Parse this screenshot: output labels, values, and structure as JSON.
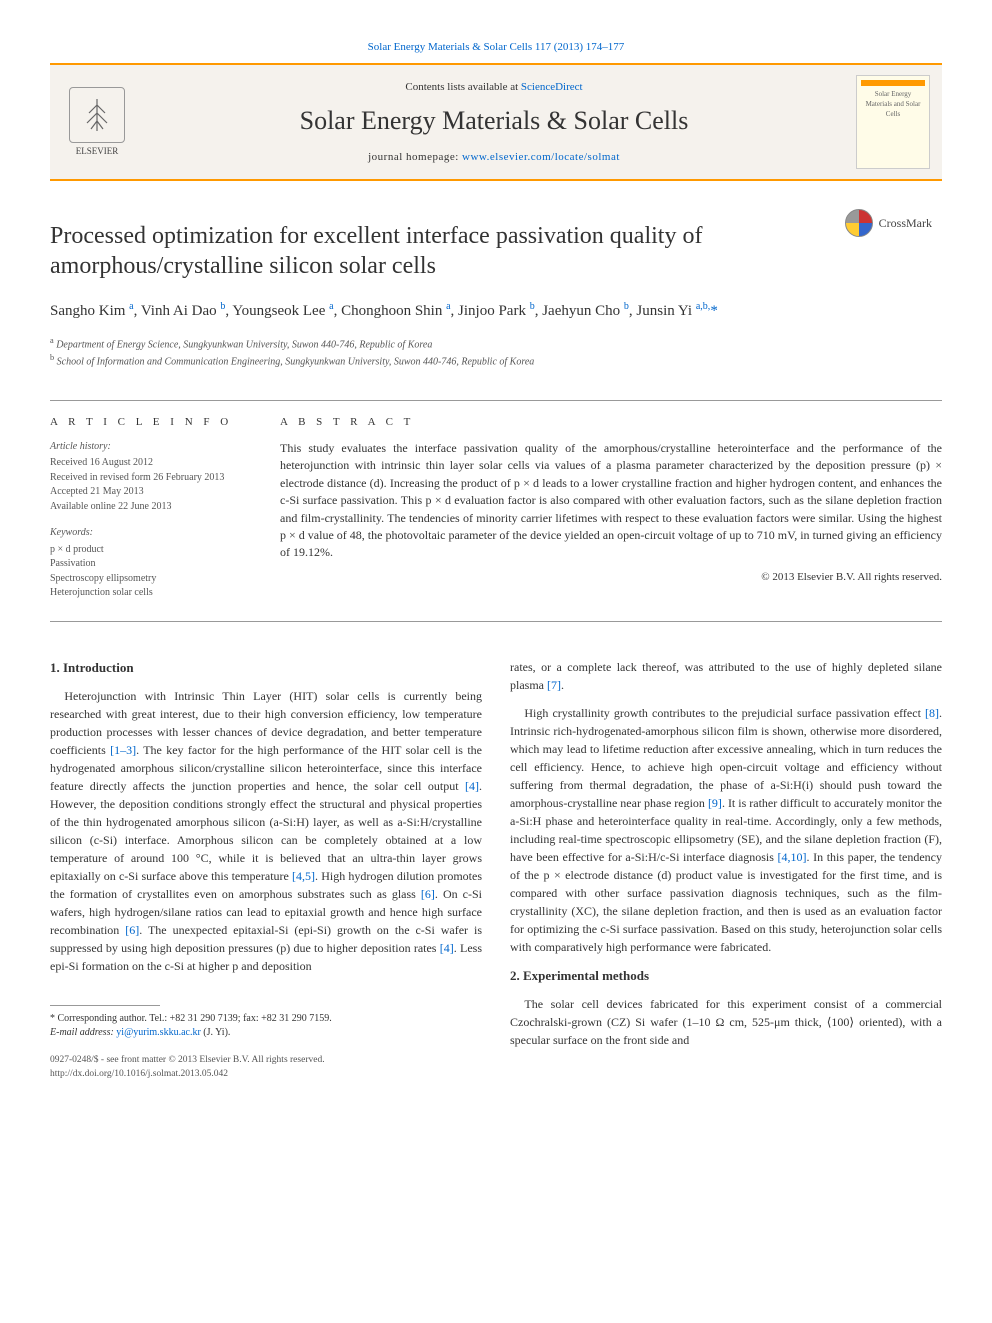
{
  "header": {
    "top_link": "Solar Energy Materials & Solar Cells 117 (2013) 174–177",
    "contents_prefix": "Contents lists available at ",
    "contents_link": "ScienceDirect",
    "journal_name": "Solar Energy Materials & Solar Cells",
    "homepage_prefix": "journal homepage: ",
    "homepage_link": "www.elsevier.com/locate/solmat",
    "publisher": "ELSEVIER",
    "cover_text": "Solar Energy Materials and Solar Cells"
  },
  "crossmark_label": "CrossMark",
  "title": "Processed optimization for excellent interface passivation quality of amorphous/crystalline silicon solar cells",
  "authors_html": "Sangho Kim <sup>a</sup>, Vinh Ai Dao <sup>b</sup>, Youngseok Lee <sup>a</sup>, Chonghoon Shin <sup>a</sup>, Jinjoo Park <sup>b</sup>, Jaehyun Cho <sup>b</sup>, Junsin Yi <sup>a,b,</sup><span class='star'>*</span>",
  "affiliations": {
    "a": "Department of Energy Science, Sungkyunkwan University, Suwon 440-746, Republic of Korea",
    "b": "School of Information and Communication Engineering, Sungkyunkwan University, Suwon 440-746, Republic of Korea"
  },
  "article_info": {
    "heading": "A R T I C L E   I N F O",
    "history_label": "Article history:",
    "received": "Received 16 August 2012",
    "revised": "Received in revised form 26 February 2013",
    "accepted": "Accepted 21 May 2013",
    "online": "Available online 22 June 2013",
    "keywords_label": "Keywords:",
    "keywords": [
      "p × d product",
      "Passivation",
      "Spectroscopy ellipsometry",
      "Heterojunction solar cells"
    ]
  },
  "abstract": {
    "heading": "A B S T R A C T",
    "text": "This study evaluates the interface passivation quality of the amorphous/crystalline heterointerface and the performance of the heterojunction with intrinsic thin layer solar cells via values of a plasma parameter characterized by the deposition pressure (p) × electrode distance (d). Increasing the product of p × d leads to a lower crystalline fraction and higher hydrogen content, and enhances the c-Si surface passivation. This p × d evaluation factor is also compared with other evaluation factors, such as the silane depletion fraction and film-crystallinity. The tendencies of minority carrier lifetimes with respect to these evaluation factors were similar. Using the highest p × d value of 48, the photovoltaic parameter of the device yielded an open-circuit voltage of up to 710 mV, in turned giving an efficiency of 19.12%.",
    "copyright": "© 2013 Elsevier B.V. All rights reserved."
  },
  "sections": {
    "intro_heading": "1.  Introduction",
    "intro_p1": "Heterojunction with Intrinsic Thin Layer (HIT) solar cells is currently being researched with great interest, due to their high conversion efficiency, low temperature production processes with lesser chances of device degradation, and better temperature coefficients [1–3]. The key factor for the high performance of the HIT solar cell is the hydrogenated amorphous silicon/crystalline silicon heterointerface, since this interface feature directly affects the junction properties and hence, the solar cell output [4]. However, the deposition conditions strongly effect the structural and physical properties of the thin hydrogenated amorphous silicon (a-Si:H) layer, as well as a-Si:H/crystalline silicon (c-Si) interface. Amorphous silicon can be completely obtained at a low temperature of around 100 °C, while it is believed that an ultra-thin layer grows epitaxially on c-Si surface above this temperature [4,5]. High hydrogen dilution promotes the formation of crystallites even on amorphous substrates such as glass [6]. On c-Si wafers, high hydrogen/silane ratios can lead to epitaxial growth and hence high surface recombination [6]. The unexpected epitaxial-Si (epi-Si) growth on the c-Si wafer is suppressed by using high deposition pressures (p) due to higher deposition rates [4]. Less epi-Si formation on the c-Si at higher p and deposition",
    "intro_p2": "rates, or a complete lack thereof, was attributed to the use of highly depleted silane plasma [7].",
    "intro_p3": "High crystallinity growth contributes to the prejudicial surface passivation effect [8]. Intrinsic rich-hydrogenated-amorphous silicon film is shown, otherwise more disordered, which may lead to lifetime reduction after excessive annealing, which in turn reduces the cell efficiency. Hence, to achieve high open-circuit voltage and efficiency without suffering from thermal degradation, the phase of a-Si:H(i) should push toward the amorphous-crystalline near phase region [9]. It is rather difficult to accurately monitor the a-Si:H phase and heterointerface quality in real-time. Accordingly, only a few methods, including real-time spectroscopic ellipsometry (SE), and the silane depletion fraction (F), have been effective for a-Si:H/c-Si interface diagnosis [4,10]. In this paper, the tendency of the p × electrode distance (d) product value is investigated for the first time, and is compared with other surface passivation diagnosis techniques, such as the film-crystallinity (XC), the silane depletion fraction, and then is used as an evaluation factor for optimizing the c-Si surface passivation. Based on this study, heterojunction solar cells with comparatively high performance were fabricated.",
    "exp_heading": "2.  Experimental methods",
    "exp_p1": "The solar cell devices fabricated for this experiment consist of a commercial Czochralski-grown (CZ) Si wafer (1–10 Ω cm, 525-μm thick, ⟨100⟩ oriented), with a specular surface on the front side and"
  },
  "footnotes": {
    "corresponding": "* Corresponding author. Tel.: +82 31 290 7139; fax: +82 31 290 7159.",
    "email_label": "E-mail address: ",
    "email": "yi@yurim.skku.ac.kr",
    "email_suffix": " (J. Yi)."
  },
  "bottom": {
    "issn": "0927-0248/$ - see front matter © 2013 Elsevier B.V. All rights reserved.",
    "doi": "http://dx.doi.org/10.1016/j.solmat.2013.05.042"
  },
  "colors": {
    "accent": "#ff9900",
    "link": "#0066cc",
    "bg": "#f5f2ed"
  }
}
